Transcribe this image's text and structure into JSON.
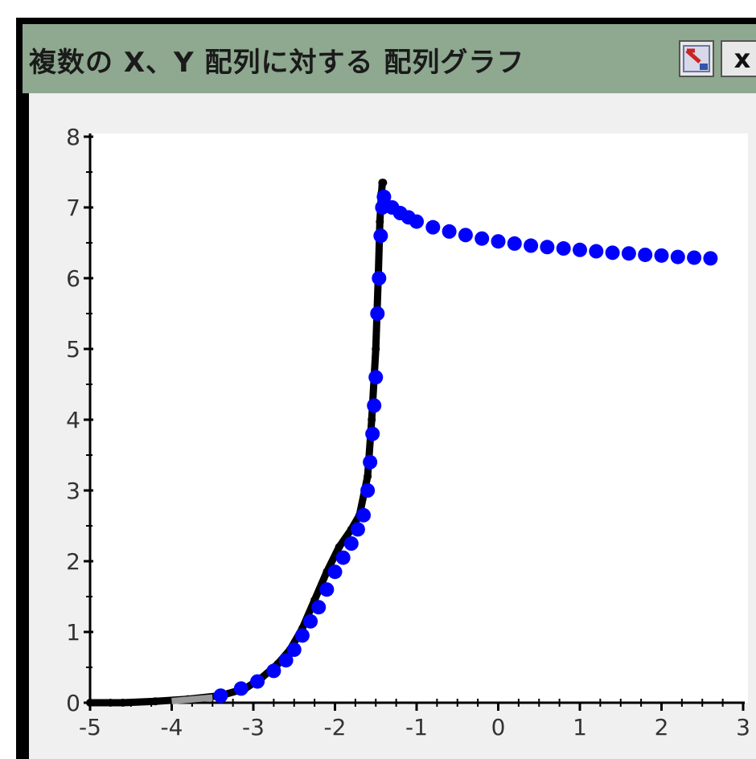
{
  "window": {
    "title": "複数の X、Y 配列に対する 配列グラフ",
    "close_label": "x",
    "restore_icon": "graph-restore-icon"
  },
  "colors": {
    "titlebar": "#8fa890",
    "series_line": "#000000",
    "series_points": "#0000ff",
    "axis": "#000000",
    "plot_bg": "#ffffff",
    "client_bg": "#f0f0f0"
  },
  "chart_data": {
    "type": "scatter",
    "title": "",
    "xlabel": "",
    "ylabel": "",
    "xlim": [
      -5,
      3
    ],
    "ylim": [
      0,
      8
    ],
    "grid": false,
    "x_ticks": [
      "-5",
      "-4",
      "-3",
      "-2",
      "-1",
      "0",
      "1",
      "2",
      "3"
    ],
    "y_ticks": [
      "0",
      "1",
      "2",
      "3",
      "4",
      "5",
      "6",
      "7",
      "8"
    ],
    "series": [
      {
        "style": "line",
        "x": [
          -5.0,
          -4.6,
          -4.2,
          -3.8,
          -3.4,
          -3.1,
          -2.9,
          -2.7,
          -2.55,
          -2.4,
          -2.25,
          -2.1,
          -1.95,
          -1.8,
          -1.7,
          -1.6,
          -1.55,
          -1.5,
          -1.47,
          -1.45,
          -1.43,
          -1.42,
          -1.41
        ],
        "y": [
          0.0,
          0.0,
          0.02,
          0.05,
          0.1,
          0.2,
          0.35,
          0.55,
          0.75,
          1.05,
          1.45,
          1.85,
          2.2,
          2.45,
          2.65,
          3.2,
          4.0,
          5.0,
          6.0,
          6.8,
          7.2,
          7.35,
          7.35
        ]
      },
      {
        "style": "markers",
        "x": [
          -3.4,
          -3.15,
          -2.95,
          -2.75,
          -2.6,
          -2.5,
          -2.4,
          -2.3,
          -2.2,
          -2.1,
          -2.0,
          -1.9,
          -1.8,
          -1.72,
          -1.65,
          -1.6,
          -1.57,
          -1.54,
          -1.52,
          -1.5,
          -1.48,
          -1.46,
          -1.44,
          -1.42,
          -1.4,
          -1.3,
          -1.2,
          -1.1,
          -1.0,
          -0.8,
          -0.6,
          -0.4,
          -0.2,
          0.0,
          0.2,
          0.4,
          0.6,
          0.8,
          1.0,
          1.2,
          1.4,
          1.6,
          1.8,
          2.0,
          2.2,
          2.4,
          2.6
        ],
        "y": [
          0.1,
          0.2,
          0.3,
          0.45,
          0.6,
          0.75,
          0.95,
          1.15,
          1.35,
          1.6,
          1.85,
          2.05,
          2.25,
          2.45,
          2.65,
          3.0,
          3.4,
          3.8,
          4.2,
          4.6,
          5.5,
          6.0,
          6.6,
          7.0,
          7.15,
          7.0,
          6.92,
          6.86,
          6.8,
          6.72,
          6.66,
          6.61,
          6.56,
          6.52,
          6.49,
          6.46,
          6.44,
          6.42,
          6.4,
          6.38,
          6.36,
          6.35,
          6.33,
          6.32,
          6.3,
          6.29,
          6.28
        ]
      },
      {
        "style": "gray-segment",
        "x": [
          -4.0,
          -3.5
        ],
        "y": [
          0.0,
          0.05
        ]
      }
    ]
  }
}
